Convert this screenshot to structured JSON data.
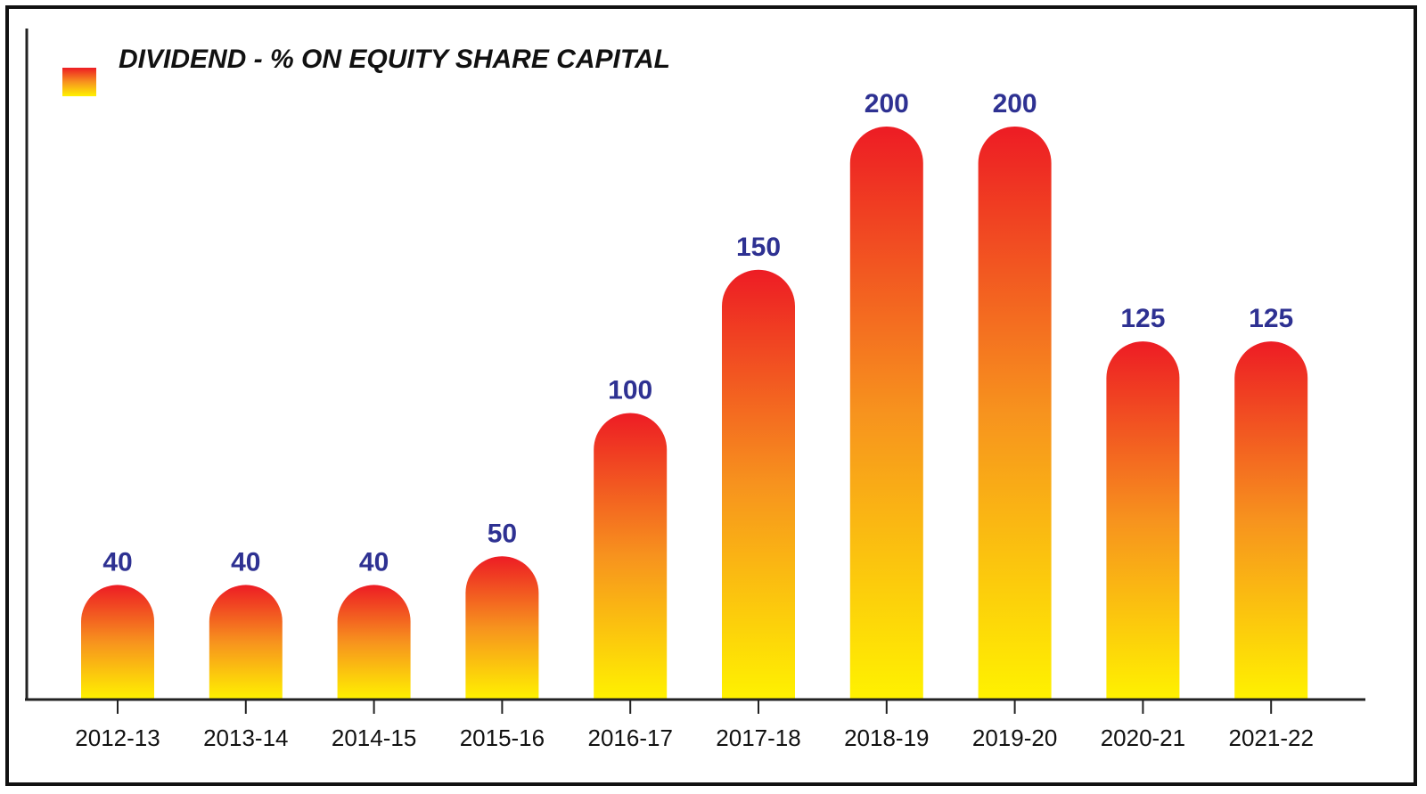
{
  "chart_data": {
    "type": "bar",
    "title": "",
    "xlabel": "",
    "ylabel": "",
    "ylim": [
      0,
      200
    ],
    "grid": false,
    "legend_position": "top-left",
    "categories": [
      "2012-13",
      "2013-14",
      "2014-15",
      "2015-16",
      "2016-17",
      "2017-18",
      "2018-19",
      "2019-20",
      "2020-21",
      "2021-22"
    ],
    "series": [
      {
        "name": "DIVIDEND - % ON EQUITY SHARE CAPITAL",
        "values": [
          40,
          40,
          40,
          50,
          100,
          150,
          200,
          200,
          125,
          125
        ]
      }
    ],
    "bar_style": "rounded-top gradient",
    "colors": {
      "gradient_top": "#ed1c24",
      "gradient_mid": "#f7931e",
      "gradient_bottom": "#fff200",
      "value_label": "#2e3192",
      "axis": "#222222",
      "text": "#111111"
    }
  }
}
